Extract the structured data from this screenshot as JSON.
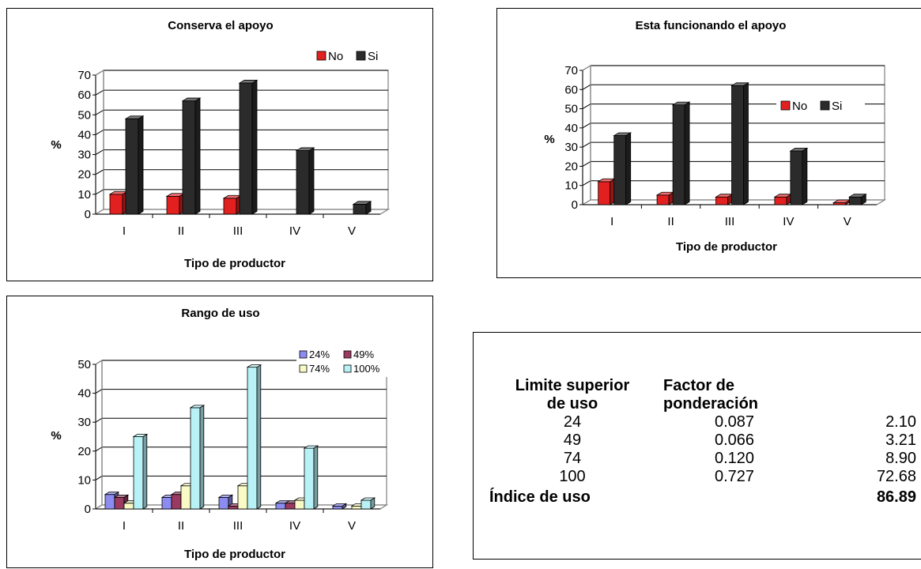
{
  "colors": {
    "no": "#e32020",
    "si": "#2b2b2b",
    "r24": "#8c8cf0",
    "r49": "#9a3a60",
    "r74": "#fafac6",
    "r100": "#b8f2f6"
  },
  "chart_data": [
    {
      "type": "bar",
      "title": "Conserva el apoyo",
      "xlabel": "Tipo de productor",
      "ylabel": "%",
      "categories": [
        "I",
        "II",
        "III",
        "IV",
        "V"
      ],
      "series": [
        {
          "name": "No",
          "values": [
            10,
            9,
            8,
            0,
            0
          ]
        },
        {
          "name": "Si",
          "values": [
            48,
            57,
            66,
            32,
            5
          ]
        }
      ],
      "ylim": [
        0,
        70
      ],
      "yticks": [
        "0",
        "10",
        "20",
        "30",
        "40",
        "50",
        "60",
        "70"
      ],
      "grid": true,
      "legend": "top-right"
    },
    {
      "type": "bar",
      "title": "Esta funcionando el apoyo",
      "xlabel": "Tipo de productor",
      "ylabel": "%",
      "categories": [
        "I",
        "II",
        "III",
        "IV",
        "V"
      ],
      "series": [
        {
          "name": "No",
          "values": [
            12,
            5,
            4,
            4,
            1
          ]
        },
        {
          "name": "Si",
          "values": [
            36,
            52,
            62,
            28,
            4
          ]
        }
      ],
      "ylim": [
        0,
        70
      ],
      "yticks": [
        "0",
        "10",
        "20",
        "30",
        "40",
        "50",
        "60",
        "70"
      ],
      "grid": true,
      "legend": "right"
    },
    {
      "type": "bar",
      "title": "Rango de uso",
      "xlabel": "Tipo de productor",
      "ylabel": "%",
      "categories": [
        "I",
        "II",
        "III",
        "IV",
        "V"
      ],
      "series": [
        {
          "name": "24%",
          "values": [
            5,
            4,
            4,
            2,
            1
          ]
        },
        {
          "name": "49%",
          "values": [
            4,
            5,
            1,
            2,
            0
          ]
        },
        {
          "name": "74%",
          "values": [
            2,
            8,
            8,
            3,
            1
          ]
        },
        {
          "name": "100%",
          "values": [
            25,
            35,
            49,
            21,
            3
          ]
        }
      ],
      "ylim": [
        0,
        50
      ],
      "yticks": [
        "0",
        "10",
        "20",
        "30",
        "40",
        "50"
      ],
      "grid": true,
      "legend": "top-right"
    }
  ],
  "table": {
    "header": {
      "col1_line1": "Limite  superior",
      "col1_line2": "de uso",
      "col2_line1": "Factor de",
      "col2_line2": "ponderación"
    },
    "rows": [
      {
        "limit": "24",
        "factor": "0.087",
        "value": "2.10"
      },
      {
        "limit": "49",
        "factor": "0.066",
        "value": "3.21"
      },
      {
        "limit": "74",
        "factor": "0.120",
        "value": "8.90"
      },
      {
        "limit": "100",
        "factor": "0.727",
        "value": "72.68"
      }
    ],
    "total_label": "Índice de uso",
    "total_value": "86.89"
  }
}
